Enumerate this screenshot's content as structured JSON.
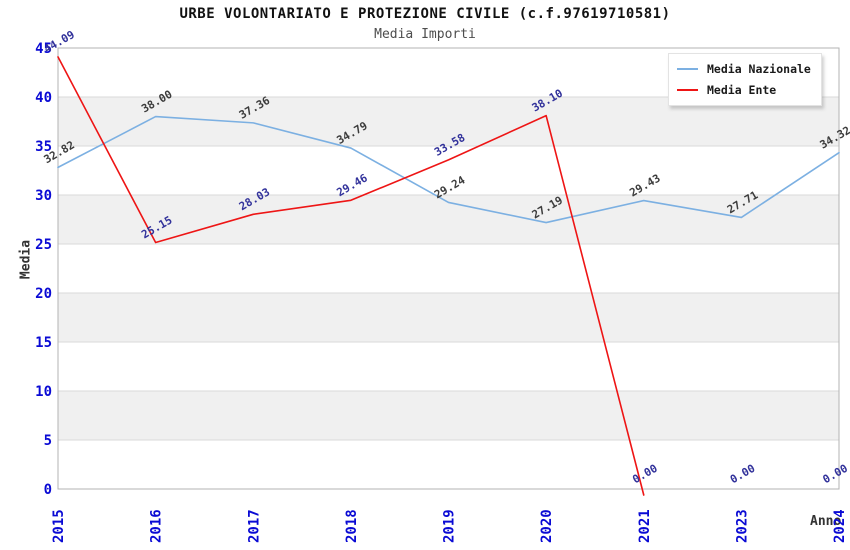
{
  "chart_data": {
    "type": "line",
    "title": "URBE VOLONTARIATO E PROTEZIONE CIVILE (c.f.97619710581)",
    "subtitle": "Media Importi",
    "xlabel": "Anno",
    "ylabel": "Media",
    "categories": [
      "2015",
      "2016",
      "2017",
      "2018",
      "2019",
      "2020",
      "2021",
      "2023",
      "2024"
    ],
    "series": [
      {
        "name": "Media Nazionale",
        "color": "#7cb0e2",
        "label_color": "#3c3c3c",
        "values": [
          32.82,
          38.0,
          37.36,
          34.79,
          29.24,
          27.19,
          29.43,
          27.71,
          34.32
        ],
        "hide_zero_segments": false
      },
      {
        "name": "Media Ente",
        "color": "#ee1515",
        "label_color": "#32329b",
        "values": [
          44.09,
          25.15,
          28.03,
          29.46,
          33.58,
          38.1,
          0.0,
          0.0,
          0.0
        ],
        "hide_zero_segments": true
      }
    ],
    "ylim": [
      0,
      45
    ],
    "yticks": [
      0,
      5,
      10,
      15,
      20,
      25,
      30,
      35,
      40,
      45
    ],
    "grid": true,
    "legend_position": "top-right",
    "colors": {
      "band": "#f0f0f0",
      "grid": "#dadada",
      "frame": "#b3b3b3",
      "tick_label": "#0a0ad4"
    }
  }
}
